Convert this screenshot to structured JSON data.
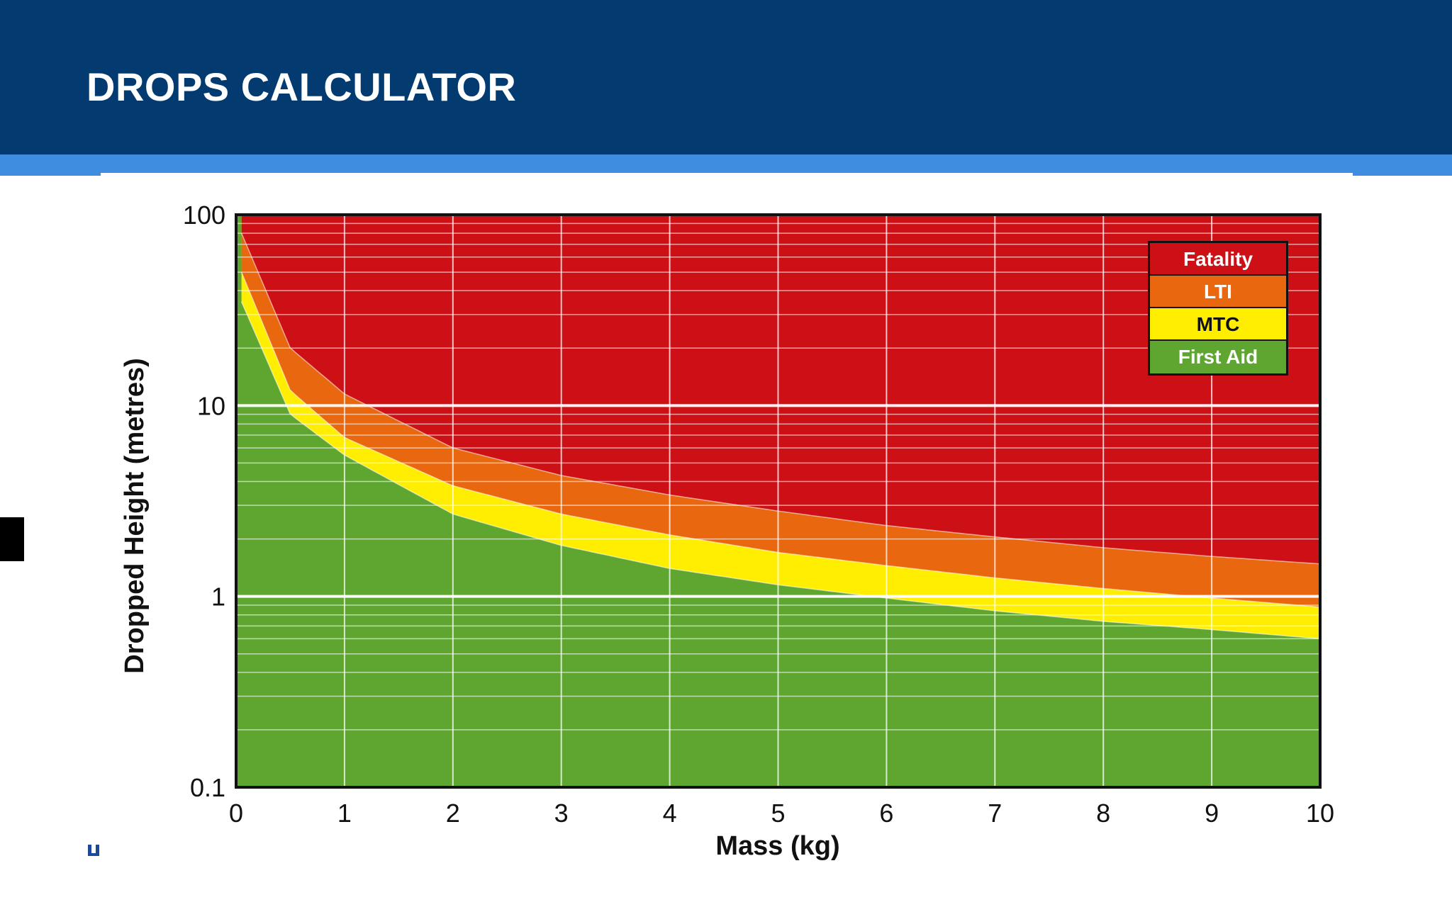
{
  "page": {
    "title": "DROPS CALCULATOR"
  },
  "colors": {
    "header": "#033b70",
    "accent": "#3f8de0",
    "fatality": "#cc1016",
    "lti": "#e8670f",
    "mtc": "#ffee00",
    "first_aid": "#5ea630"
  },
  "chart_data": {
    "type": "area",
    "title": "",
    "xlabel": "Mass (kg)",
    "ylabel": "Dropped Height (metres)",
    "x_scale": "linear",
    "y_scale": "log",
    "xlim": [
      0,
      10
    ],
    "ylim": [
      0.1,
      100
    ],
    "x_ticks": [
      "0",
      "1",
      "2",
      "3",
      "4",
      "5",
      "6",
      "7",
      "8",
      "9",
      "10"
    ],
    "y_ticks": [
      "0.1",
      "1",
      "10",
      "100"
    ],
    "grid": true,
    "legend": {
      "position": "top-right",
      "entries": [
        "Fatality",
        "LTI",
        "MTC",
        "First Aid"
      ]
    },
    "zones_bottom_to_top": [
      "First Aid",
      "MTC",
      "LTI",
      "Fatality"
    ],
    "boundaries": [
      {
        "name": "First Aid / MTC",
        "x": [
          0.05,
          0.5,
          1,
          2,
          3,
          4,
          5,
          6,
          7,
          8,
          9,
          10
        ],
        "y": [
          35,
          9,
          5.5,
          2.7,
          1.85,
          1.4,
          1.15,
          0.98,
          0.84,
          0.74,
          0.67,
          0.6
        ]
      },
      {
        "name": "MTC / LTI",
        "x": [
          0.05,
          0.5,
          1,
          2,
          3,
          4,
          5,
          6,
          7,
          8,
          9,
          10
        ],
        "y": [
          50,
          12,
          6.8,
          3.8,
          2.7,
          2.1,
          1.7,
          1.45,
          1.25,
          1.1,
          0.98,
          0.88
        ]
      },
      {
        "name": "LTI / Fatality",
        "x": [
          0.05,
          0.5,
          1,
          2,
          3,
          4,
          5,
          6,
          7,
          8,
          9,
          10
        ],
        "y": [
          80,
          20,
          11.5,
          6.0,
          4.3,
          3.4,
          2.8,
          2.35,
          2.05,
          1.8,
          1.62,
          1.48
        ]
      }
    ]
  }
}
